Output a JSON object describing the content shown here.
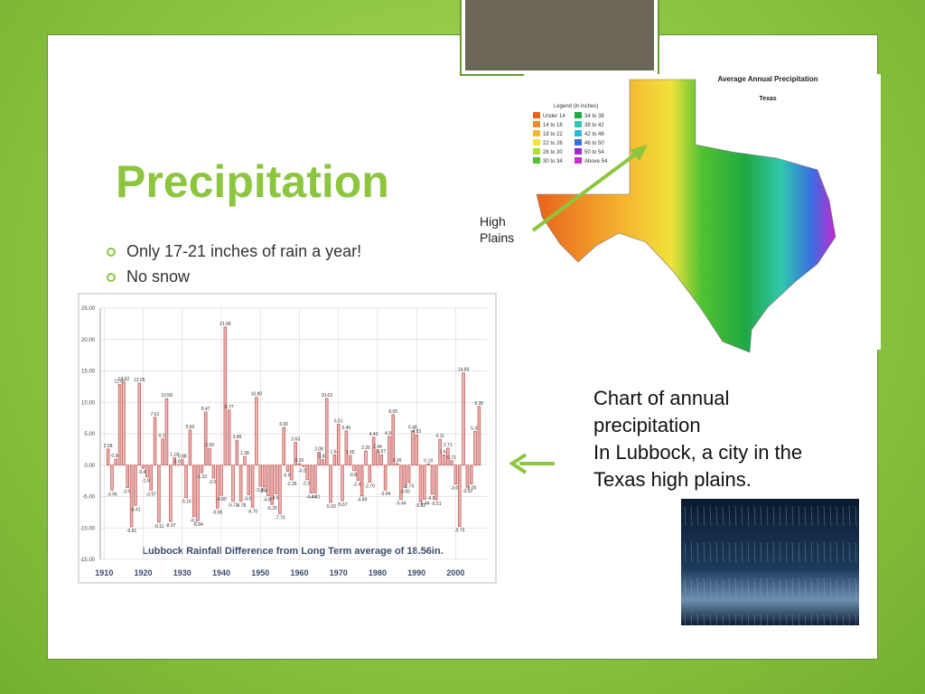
{
  "slide": {
    "title": "Precipitation",
    "bullets": [
      "Only 17-21 inches of rain a year!",
      "No snow"
    ],
    "map_label": "High Plains",
    "caption": [
      "Chart of annual precipitation",
      "In Lubbock, a city in the Texas high plains."
    ],
    "map": {
      "title": "Average Annual Precipitation",
      "subtitle": "Texas",
      "legend_title": "Legend (in inches)",
      "legend": [
        {
          "label": "Under 14",
          "color": "#e8621c"
        },
        {
          "label": "14 to 18",
          "color": "#f08a2a"
        },
        {
          "label": "18 to 22",
          "color": "#f5b731"
        },
        {
          "label": "22 to 26",
          "color": "#f2e23a"
        },
        {
          "label": "26 to 30",
          "color": "#b6dc2e"
        },
        {
          "label": "30 to 34",
          "color": "#52c232"
        },
        {
          "label": "34 to 38",
          "color": "#20a844"
        },
        {
          "label": "38 to 42",
          "color": "#30c8b0"
        },
        {
          "label": "42 to 46",
          "color": "#28b8d8"
        },
        {
          "label": "46 to 50",
          "color": "#3a6ee0"
        },
        {
          "label": "50 to 54",
          "color": "#9a2ad0"
        },
        {
          "label": "Above 54",
          "color": "#d02ad0"
        }
      ]
    }
  },
  "chart_data": {
    "type": "bar",
    "title": "Lubbock Rainfall Difference from Long Term average of 18.56in.",
    "x": [
      1911,
      1912,
      1913,
      1914,
      1915,
      1916,
      1917,
      1918,
      1919,
      1920,
      1921,
      1922,
      1923,
      1924,
      1925,
      1926,
      1927,
      1928,
      1929,
      1930,
      1931,
      1932,
      1933,
      1934,
      1935,
      1936,
      1937,
      1938,
      1939,
      1940,
      1941,
      1942,
      1943,
      1944,
      1945,
      1946,
      1947,
      1948,
      1949,
      1950,
      1951,
      1952,
      1953,
      1954,
      1955,
      1956,
      1957,
      1958,
      1959,
      1960,
      1961,
      1962,
      1963,
      1964,
      1965,
      1966,
      1967,
      1968,
      1969,
      1970,
      1971,
      1972,
      1973,
      1974,
      1975,
      1976,
      1977,
      1978,
      1979,
      1980,
      1981,
      1982,
      1983,
      1984,
      1985,
      1986,
      1987,
      1988,
      1989,
      1990,
      1991,
      1992,
      1993,
      1994,
      1995,
      1996,
      1997,
      1998,
      1999,
      2000,
      2001,
      2002,
      2003,
      2004,
      2005,
      2006
    ],
    "values": [
      2.58,
      -3.96,
      0.98,
      12.87,
      13.22,
      -3.58,
      -9.81,
      -6.41,
      13.05,
      -0.48,
      -1.87,
      -3.97,
      7.61,
      -9.11,
      4.18,
      10.58,
      -8.97,
      1.18,
      0.07,
      0.88,
      -5.16,
      5.6,
      -8.2,
      -8.84,
      -1.22,
      8.47,
      2.69,
      -2.04,
      -6.85,
      -4.8,
      21.99,
      8.77,
      -5.73,
      3.98,
      -5.78,
      1.38,
      -4.69,
      -6.7,
      10.8,
      -3.36,
      -3.49,
      -4.86,
      -6.25,
      -4.57,
      -7.73,
      6,
      -0.98,
      -2.35,
      3.63,
      0.26,
      -0.23,
      -2.3,
      -4.44,
      -4.41,
      2.08,
      0.88,
      10.63,
      -5.93,
      1.64,
      6.51,
      -5.67,
      5.45,
      1.55,
      -0.87,
      -2.43,
      -4.89,
      2.26,
      -2.7,
      4.43,
      2.44,
      1.67,
      -3.94,
      4.59,
      8.05,
      0.26,
      -5.44,
      -3.55,
      -2.73,
      5.48,
      4.83,
      -5.82,
      -5.44,
      0.19,
      -4.64,
      -5.51,
      4.11,
      1.64,
      2.71,
      0.71,
      -3.01,
      -9.75,
      14.69,
      -3.52,
      -3,
      5.38,
      9.35
    ],
    "value_labels": [
      "2.58",
      "-3.96",
      "0.98",
      "12.87",
      "13.22",
      "-3.58",
      "-9.81",
      "-6.41",
      "13.05",
      "-0.48",
      "-1.87",
      "-3.97",
      "7.61",
      "-9.11",
      "4.18",
      "10.58",
      "-8.97",
      "1.18",
      "0.07",
      "0.88",
      "-5.16",
      "5.60",
      "-8.2",
      "-8.84",
      "-1.22",
      "8.47",
      "2.69",
      "-2.04",
      "-6.85",
      "-4.80",
      "21.99",
      "8.77",
      "-5.73",
      "3.98",
      "-5.78",
      "1.38",
      "-4.69",
      "-6.70",
      "10.80",
      "-3.36",
      "-3.49",
      "-4.86",
      "-6.25",
      "-4.57",
      "-7.73",
      "6.00",
      "-0.98",
      "-2.35",
      "3.63",
      "0.26",
      "-0.23",
      "-2.30",
      "-4.44",
      "-4.41",
      "2.08",
      "0.88",
      "10.63",
      "-5.93",
      "1.64",
      "6.51",
      "-5.67",
      "5.45",
      "1.55",
      "-0.87",
      "-2.43",
      "-4.89",
      "2.26",
      "-2.70",
      "4.43",
      "2.44",
      "1.67",
      "-3.94",
      "4.59",
      "8.05",
      "0.26",
      "-5.44",
      "-3.55",
      "-2.73",
      "5.48",
      "4.83",
      "-5.82",
      "-5.44",
      "0.19",
      "-4.64",
      "-5.51",
      "4.11",
      "1.64",
      "2.71",
      "0.71",
      "-3.01",
      "-9.75",
      "14.69",
      "-3.52",
      "-3.00",
      "5.38",
      "9.35"
    ],
    "color": "#c0504d",
    "xlim": [
      1909,
      2008
    ],
    "xticks": [
      1910,
      1920,
      1930,
      1940,
      1950,
      1960,
      1970,
      1980,
      1990,
      2000
    ],
    "ylim": [
      -15,
      25
    ],
    "yticks": [
      {
        "value": -15,
        "label": "-15.00"
      },
      {
        "value": -10,
        "label": "-10.00"
      },
      {
        "value": -5,
        "label": "-5.00"
      },
      {
        "value": 0,
        "label": "0.00"
      },
      {
        "value": 5,
        "label": "5.00"
      },
      {
        "value": 10,
        "label": "10.00"
      },
      {
        "value": 15,
        "label": "15.00"
      },
      {
        "value": 20,
        "label": "20.00"
      },
      {
        "value": 25,
        "label": "25.00"
      }
    ],
    "grid": true
  }
}
